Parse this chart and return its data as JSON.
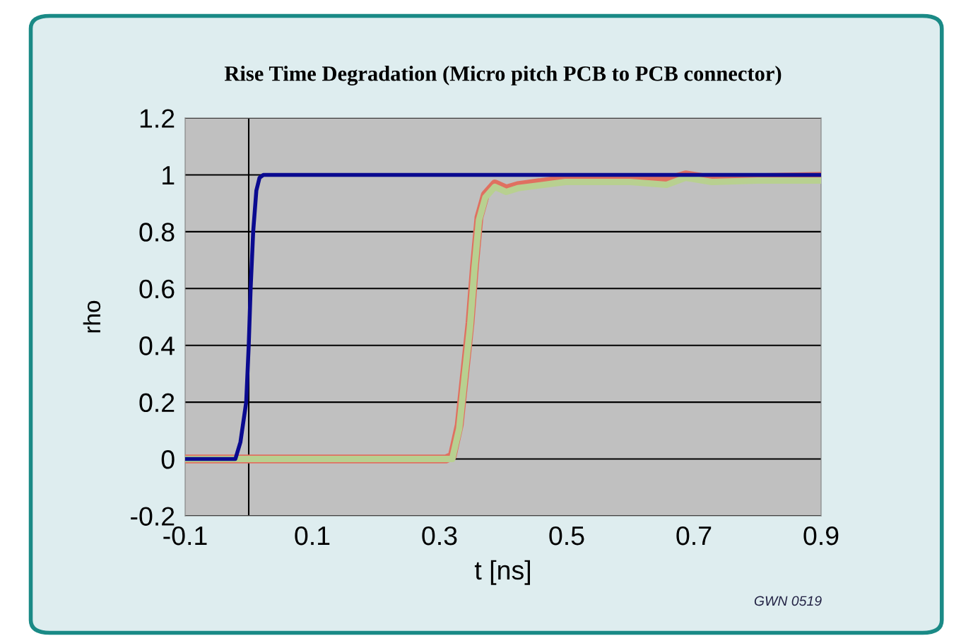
{
  "chart_data": {
    "type": "line",
    "title": "Rise Time Degradation (Micro pitch PCB to PCB connector)",
    "xlabel": "t [ns]",
    "ylabel": "rho",
    "xlim": [
      -0.1,
      0.9
    ],
    "xticks": [
      -0.1,
      0.1,
      0.3,
      0.5,
      0.7,
      0.9
    ],
    "ylim": [
      -0.2,
      1.2
    ],
    "yticks": [
      -0.2,
      0,
      0.2,
      0.4,
      0.6,
      0.8,
      1,
      1.2
    ],
    "grid": "y",
    "legend": false,
    "marker": "none",
    "line_style": "solid",
    "ref_lines": [
      {
        "axis": "x",
        "value": 0,
        "color": "#000000"
      }
    ],
    "annotations": [
      "GWN 0519"
    ],
    "series": [
      {
        "color": "#e07060",
        "x": [
          -0.1,
          0.31,
          0.32,
          0.331,
          0.34,
          0.348,
          0.355,
          0.362,
          0.372,
          0.387,
          0.405,
          0.423,
          0.498,
          0.6,
          0.657,
          0.687,
          0.728,
          0.8,
          0.9
        ],
        "values": [
          0,
          0,
          0.01,
          0.12,
          0.31,
          0.48,
          0.68,
          0.85,
          0.93,
          0.968,
          0.95,
          0.962,
          0.985,
          0.99,
          0.98,
          1.0,
          0.985,
          0.99,
          0.995
        ]
      },
      {
        "color": "#b8d090",
        "x": [
          -0.1,
          0.31,
          0.32,
          0.331,
          0.34,
          0.348,
          0.355,
          0.362,
          0.372,
          0.387,
          0.405,
          0.423,
          0.498,
          0.6,
          0.657,
          0.687,
          0.728,
          0.8,
          0.9
        ],
        "values": [
          0,
          0,
          0,
          0.107,
          0.3,
          0.465,
          0.67,
          0.84,
          0.92,
          0.958,
          0.94,
          0.953,
          0.975,
          0.975,
          0.965,
          0.99,
          0.975,
          0.98,
          0.98
        ]
      },
      {
        "color": "#0a0a90",
        "x": [
          -0.1,
          -0.021,
          -0.013,
          -0.004,
          0.0,
          0.003,
          0.007,
          0.012,
          0.017,
          0.023,
          0.9
        ],
        "values": [
          0,
          0,
          0.06,
          0.2,
          0.4,
          0.6,
          0.8,
          0.945,
          0.99,
          1.0,
          1.0
        ]
      }
    ]
  }
}
